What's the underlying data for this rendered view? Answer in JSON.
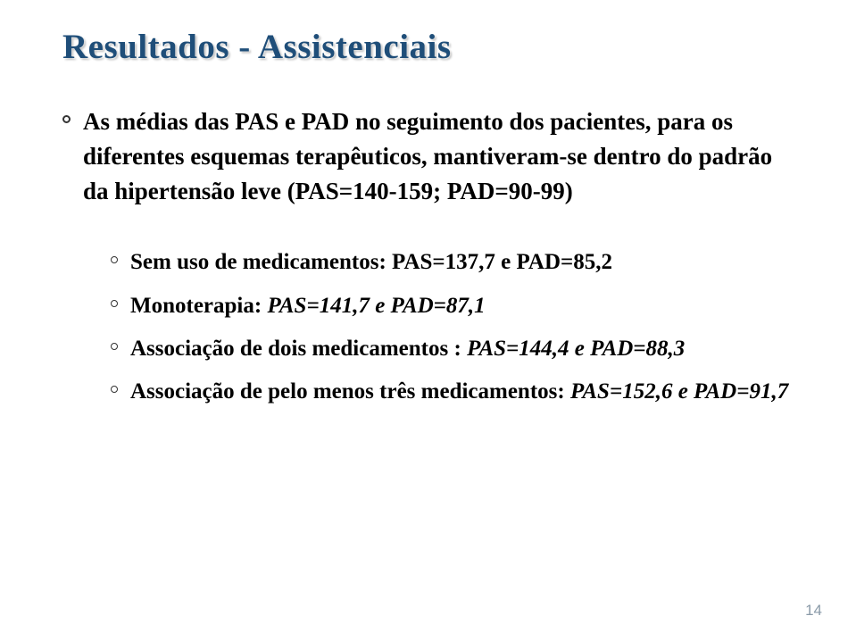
{
  "title_part1": "Resultados",
  "title_sep": " - ",
  "title_part2": "Assistenciais",
  "main_bullet": "As médias das PAS e PAD no seguimento dos pacientes, para os diferentes esquemas terapêuticos, mantiveram-se dentro do padrão da hipertensão leve (PAS=140-159; PAD=90-99)",
  "sub_bullets": [
    {
      "label": "Sem uso de medicamentos: PAS=137,7 e PAD=85,2",
      "italic": false
    },
    {
      "label_pre": "Monoterapia: ",
      "label_em": "PAS=141,7 e PAD=87,1",
      "italic": true
    },
    {
      "label_pre": "Associação de dois medicamentos : ",
      "label_em": "PAS=144,4 e PAD=88,3",
      "italic": true
    },
    {
      "label_pre": "Associação de pelo menos três medicamentos: ",
      "label_em": "PAS=152,6 e PAD=91,7",
      "italic": true
    }
  ],
  "page_number": "14",
  "colors": {
    "title": "#1f4e79",
    "text": "#000000",
    "page_num": "#8a9aa8",
    "background": "#ffffff"
  }
}
